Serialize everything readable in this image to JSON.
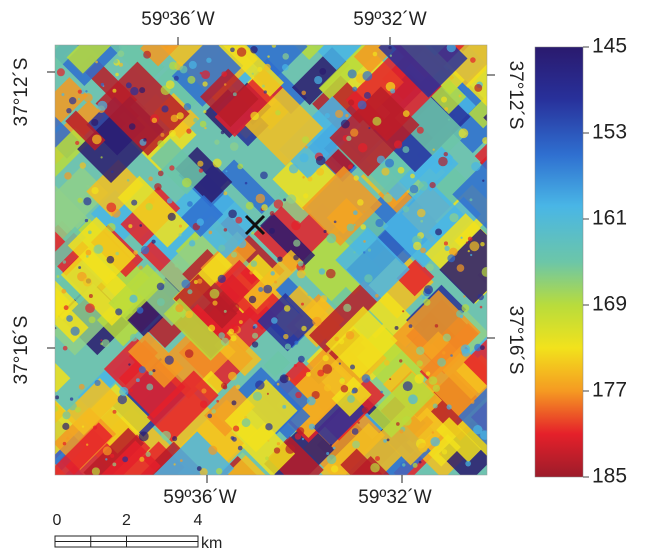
{
  "map": {
    "top_labels": [
      "59º36´W",
      "59º32´W"
    ],
    "bottom_labels": [
      "59º36´W",
      "59º32´W"
    ],
    "left_labels": [
      "37°12´S",
      "37°16´S"
    ],
    "right_labels": [
      "37°12´S",
      "37°16´S"
    ],
    "colorbar": {
      "ticks": [
        145,
        153,
        161,
        169,
        177,
        185
      ]
    },
    "scale_bar": {
      "ticks": [
        0,
        2,
        4
      ],
      "unit": "km"
    }
  }
}
